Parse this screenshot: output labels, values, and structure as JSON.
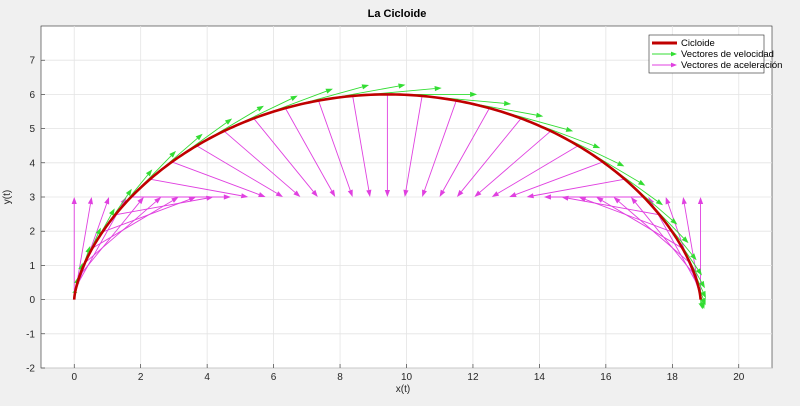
{
  "chart_data": {
    "type": "line",
    "title": "La Cicloide",
    "xlabel": "x(t)",
    "ylabel": "y(t)",
    "xlim": [
      -1,
      21
    ],
    "ylim": [
      -2,
      8
    ],
    "xticks": [
      "0",
      "2",
      "4",
      "6",
      "8",
      "10",
      "12",
      "14",
      "16",
      "18",
      "20"
    ],
    "yticks": [
      "-2",
      "-1",
      "0",
      "1",
      "2",
      "3",
      "4",
      "5",
      "6",
      "7"
    ],
    "grid": true,
    "legend_position": "top-right",
    "cycloid": {
      "radius": 3,
      "t_range": [
        0,
        6.2832
      ]
    },
    "series": [
      {
        "name": "Cicloide",
        "color": "#c00000",
        "kind": "line"
      },
      {
        "name": "Vectores de velocidad",
        "color": "#33dd33",
        "kind": "arrows"
      },
      {
        "name": "Vectores de aceleración",
        "color": "#e040e0",
        "kind": "arrows"
      }
    ]
  }
}
